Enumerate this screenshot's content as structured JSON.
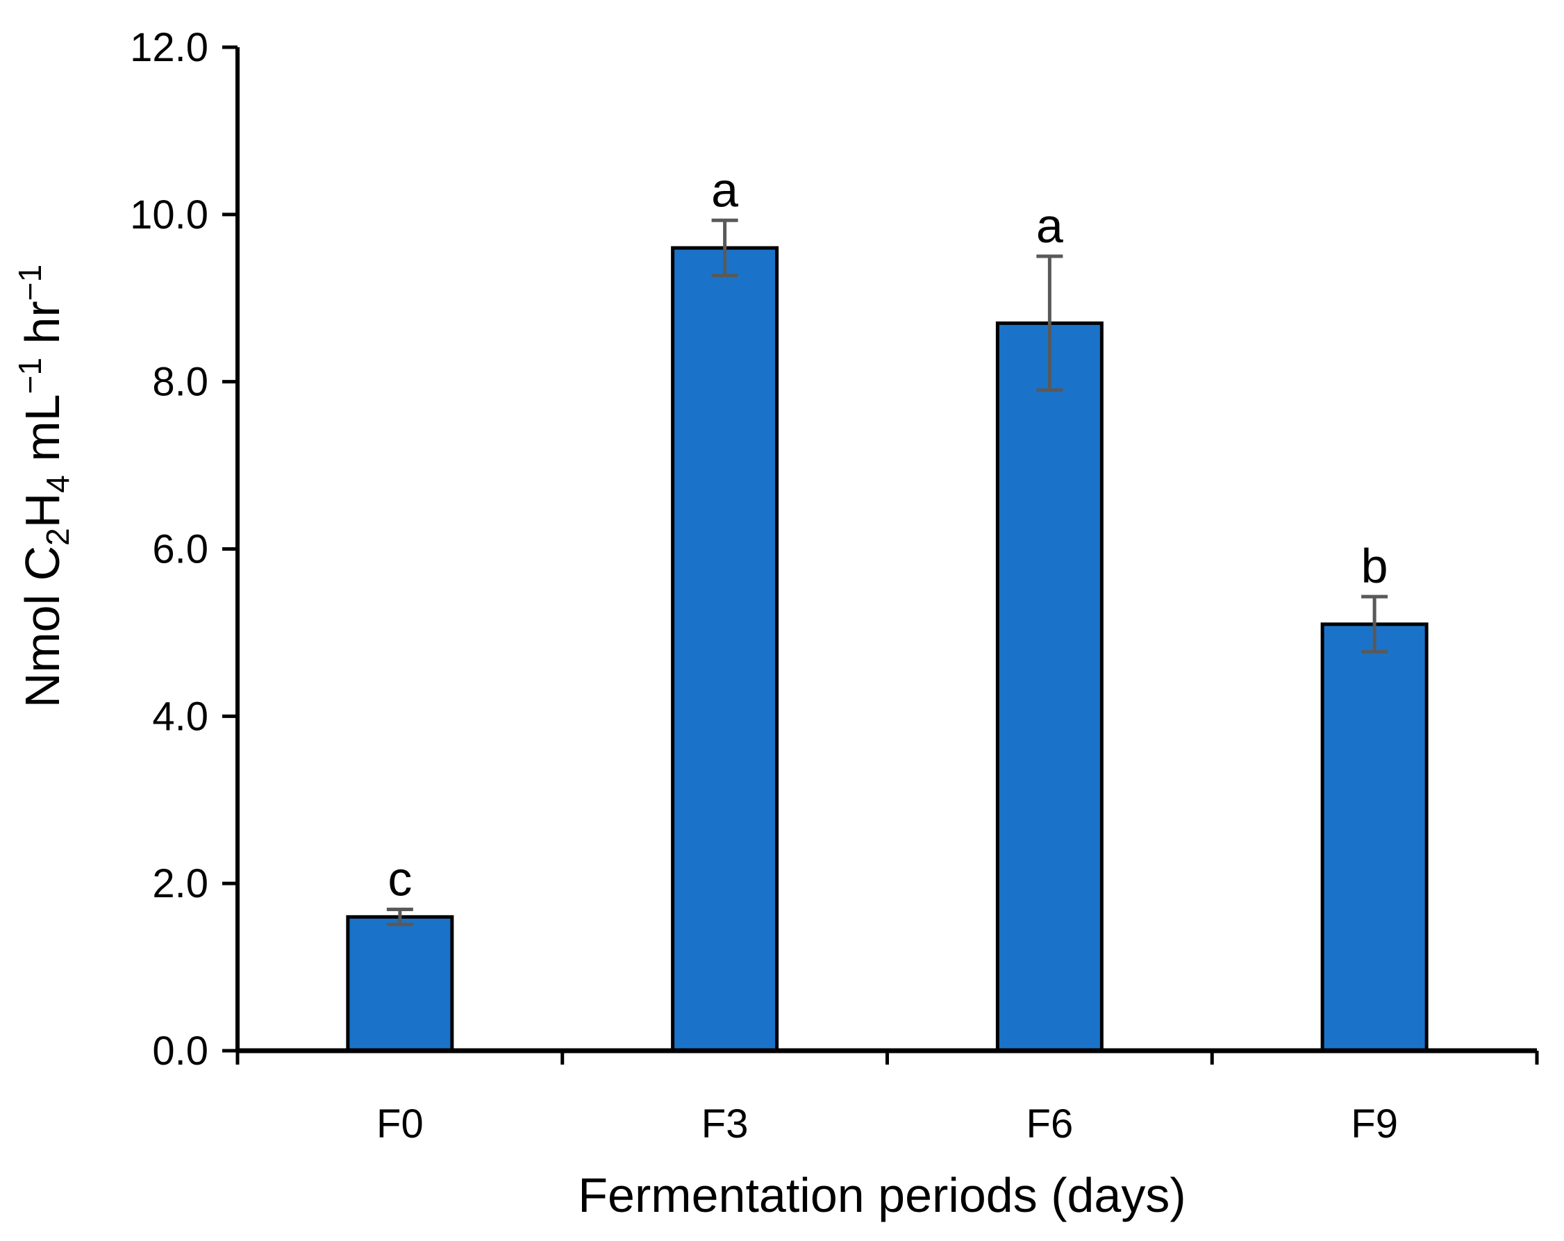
{
  "chart_data": {
    "type": "bar",
    "title": "",
    "categories": [
      "F0",
      "F3",
      "F6",
      "F9"
    ],
    "values": [
      1.6,
      9.6,
      8.7,
      5.1
    ],
    "errors": [
      0.09,
      0.33,
      0.8,
      0.33
    ],
    "significance_letters": [
      "c",
      "a",
      "a",
      "b"
    ],
    "xlabel": "Fermentation periods (days)",
    "ylabel": {
      "prefix": "Nmol C",
      "sub1": "2",
      "mid1": "H",
      "sub2": "4",
      "mid2": " mL",
      "sup1": "−1",
      "mid3": " hr",
      "sup2": "−1"
    },
    "ylim": [
      0,
      12
    ],
    "yticks": [
      0,
      2,
      4,
      6,
      8,
      10,
      12
    ],
    "ytick_labels": [
      "0.0",
      "2.0",
      "4.0",
      "6.0",
      "8.0",
      "10.0",
      "12.0"
    ],
    "grid": false,
    "legend": "none",
    "colors": {
      "bar_fill": "#1a73c8",
      "bar_stroke": "#000000",
      "error_bar": "#595959",
      "axis": "#000000"
    }
  }
}
